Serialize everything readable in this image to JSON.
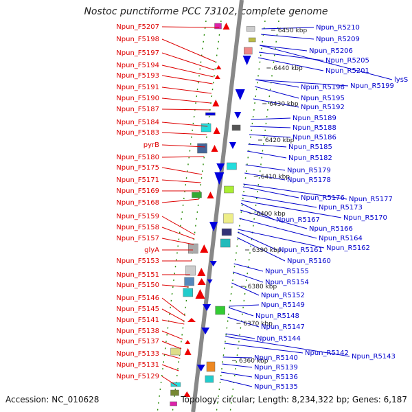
{
  "title": "Nostoc punctiforme PCC 73102, complete genome",
  "accession": "Accession: NC_010628",
  "topology": "Topology: circular; Length: 8,234,322 bp; Genes: 6,187",
  "colors": {
    "left_label": "#dd0000",
    "right_label": "#0000cc",
    "forward_gene": "#ee0000",
    "reverse_gene": "#0000dd",
    "backbone": "#888888",
    "tick": "#228800"
  },
  "scale_labels": [
    "6450 kbp",
    "6440 kbp",
    "6430 kbp",
    "6420 kbp",
    "6410 kbp",
    "6400 kbp",
    "6390 kbp",
    "6380 kbp",
    "6370 kbp",
    "6360 kbp"
  ],
  "left_genes": [
    "Npun_F5207",
    "Npun_F5198",
    "Npun_F5197",
    "Npun_F5194",
    "Npun_F5193",
    "Npun_F5191",
    "Npun_F5190",
    "Npun_F5187",
    "Npun_F5184",
    "Npun_F5183",
    "pyrB",
    "Npun_F5180",
    "Npun_F5175",
    "Npun_F5171",
    "Npun_F5169",
    "Npun_F5168",
    "Npun_F5159",
    "Npun_F5158",
    "Npun_F5157",
    "glyA",
    "Npun_F5153",
    "Npun_F5151",
    "Npun_F5150",
    "Npun_F5146",
    "Npun_F5145",
    "Npun_F5141",
    "Npun_F5138",
    "Npun_F5137",
    "Npun_F5133",
    "Npun_F5131",
    "Npun_F5129"
  ],
  "right_genes": [
    "Npun_R5210",
    "Npun_R5209",
    "Npun_R5206",
    "Npun_R5205",
    "Npun_R5201",
    "lysS",
    "Npun_R5199",
    "Npun_R5196",
    "Npun_R5195",
    "Npun_R5192",
    "Npun_R5189",
    "Npun_R5188",
    "Npun_R5186",
    "Npun_R5185",
    "Npun_R5182",
    "Npun_R5179",
    "Npun_R5178",
    "Npun_R5177",
    "Npun_R5176",
    "Npun_R5173",
    "Npun_R5170",
    "Npun_R5167",
    "Npun_R5166",
    "Npun_R5164",
    "Npun_R5162",
    "Npun_R5161",
    "Npun_R5160",
    "Npun_R5155",
    "Npun_R5154",
    "Npun_R5152",
    "Npun_R5149",
    "Npun_R5148",
    "Npun_R5147",
    "Npun_R5144",
    "Npun_R5143",
    "Npun_R5142",
    "Npun_R5140",
    "Npun_R5139",
    "Npun_R5136",
    "Npun_R5135"
  ]
}
